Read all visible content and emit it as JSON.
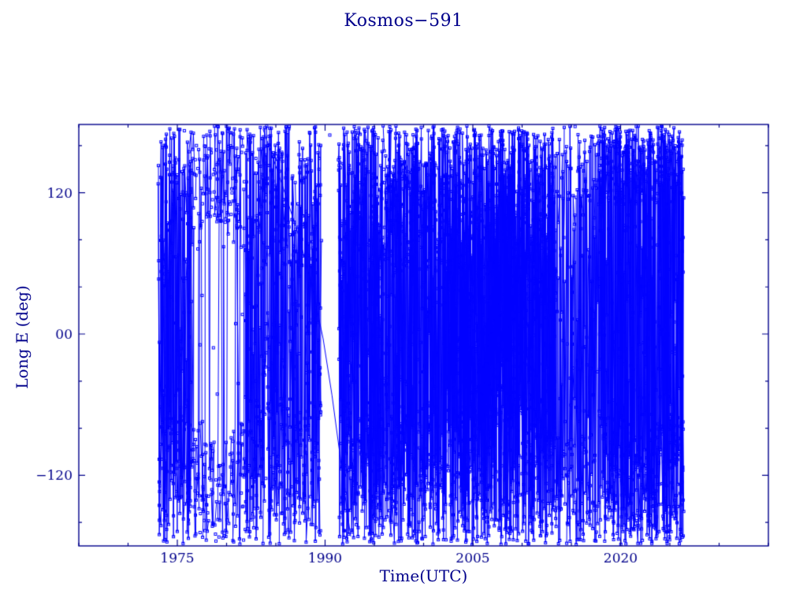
{
  "chart_data": {
    "type": "scatter",
    "title": "Kosmos−591",
    "xlabel": "Time(UTC)",
    "ylabel": "Long E (deg)",
    "xlim": [
      1965,
      2035
    ],
    "ylim": [
      -180,
      178
    ],
    "xticks": [
      1975,
      1990,
      2005,
      2020
    ],
    "xminor_step": 5,
    "yticks": [
      -120,
      0,
      120
    ],
    "ytick_labels": [
      "−120",
      "00",
      "120"
    ],
    "yminor_step": 40,
    "axis_color": "#00008b",
    "data_color": "#0000ff",
    "marker": "open-square",
    "marker_size": 3,
    "segments": [
      {
        "name": "early-dense",
        "from": 1973.1,
        "to": 1976.4,
        "dt": 0.07,
        "passes": 5,
        "crossP": 1,
        "bands": [
          {
            "lo": 60,
            "hi": 177,
            "p": 0.36
          },
          {
            "lo": -179,
            "hi": -60,
            "p": 0.36
          },
          {
            "lo": -58,
            "hi": 58,
            "p": 0.2
          }
        ]
      },
      {
        "name": "libration-lens-1",
        "from": 1976.4,
        "to": 1977.6,
        "dt": 0.07,
        "passes": 4,
        "crossP": 0.12,
        "bands": [
          {
            "lo": 72,
            "hi": 177,
            "p": 0.46
          },
          {
            "lo": -179,
            "hi": -72,
            "p": 0.46
          },
          {
            "lo": -68,
            "hi": 68,
            "p": 0.03
          }
        ]
      },
      {
        "name": "libration-lens-2",
        "from": 1977.6,
        "to": 1980.2,
        "dt": 0.07,
        "passes": 4,
        "crossP": 0.1,
        "bands": [
          {
            "lo": 92,
            "hi": 177,
            "p": 0.46
          },
          {
            "lo": -179,
            "hi": -88,
            "p": 0.46
          },
          {
            "lo": -80,
            "hi": 85,
            "p": 0.025
          }
        ]
      },
      {
        "name": "libration-lens-3",
        "from": 1980.2,
        "to": 1981.9,
        "dt": 0.07,
        "passes": 4,
        "crossP": 0.15,
        "bands": [
          {
            "lo": 72,
            "hi": 177,
            "p": 0.46
          },
          {
            "lo": -179,
            "hi": -72,
            "p": 0.46
          },
          {
            "lo": -65,
            "hi": 65,
            "p": 0.05
          }
        ]
      },
      {
        "name": "dense-80s",
        "from": 1981.9,
        "to": 1989.6,
        "dt": 0.065,
        "passes": 5,
        "crossP": 0.85,
        "bands": [
          {
            "lo": 55,
            "hi": 177,
            "p": 0.38
          },
          {
            "lo": -179,
            "hi": -55,
            "p": 0.38
          },
          {
            "lo": -55,
            "hi": 55,
            "p": 0.16
          }
        ]
      },
      {
        "name": "quiet-gap-1990",
        "from": 1989.7,
        "to": 1991.4,
        "dt": 0.25,
        "passes": 1,
        "crossP": 0,
        "bands": [
          {
            "lo": 105,
            "hi": 170,
            "p": 0.15
          },
          {
            "lo": -168,
            "hi": -125,
            "p": 0.12
          }
        ]
      },
      {
        "name": "dense-early-90s",
        "from": 1991.4,
        "to": 1995.6,
        "dt": 0.06,
        "passes": 6,
        "crossP": 1,
        "bands": [
          {
            "lo": 30,
            "hi": 177,
            "p": 0.42
          },
          {
            "lo": -179,
            "hi": -55,
            "p": 0.38
          },
          {
            "lo": -50,
            "hi": 28,
            "p": 0.14
          }
        ]
      },
      {
        "name": "dense-late-90s",
        "from": 1995.6,
        "to": 2002.6,
        "dt": 0.06,
        "passes": 6,
        "crossP": 0.9,
        "bands": [
          {
            "lo": 52,
            "hi": 177,
            "p": 0.46
          },
          {
            "lo": -179,
            "hi": -58,
            "p": 0.38
          },
          {
            "lo": -52,
            "hi": 50,
            "p": 0.1
          }
        ]
      },
      {
        "name": "very-dense-2000s",
        "from": 2002.6,
        "to": 2013.4,
        "dt": 0.055,
        "passes": 7,
        "crossP": 1,
        "bands": [
          {
            "lo": 40,
            "hi": 177,
            "p": 0.4
          },
          {
            "lo": -179,
            "hi": -40,
            "p": 0.36
          },
          {
            "lo": -38,
            "hi": 38,
            "p": 0.22
          }
        ]
      },
      {
        "name": "moderate-mid-2010s",
        "from": 2013.4,
        "to": 2017.9,
        "dt": 0.07,
        "passes": 4,
        "crossP": 0.9,
        "bands": [
          {
            "lo": 108,
            "hi": 177,
            "p": 0.28
          },
          {
            "lo": -179,
            "hi": -85,
            "p": 0.4
          },
          {
            "lo": -80,
            "hi": 104,
            "p": 0.26
          }
        ]
      },
      {
        "name": "dense-2020s",
        "from": 2017.9,
        "to": 2026.4,
        "dt": 0.06,
        "passes": 6,
        "crossP": 0.95,
        "bands": [
          {
            "lo": 110,
            "hi": 177,
            "p": 0.38
          },
          {
            "lo": -179,
            "hi": -68,
            "p": 0.4
          },
          {
            "lo": -62,
            "hi": 106,
            "p": 0.18
          }
        ]
      }
    ],
    "drift_lines": [
      {
        "name": "slow-drift-1990",
        "points": [
          [
            1983.7,
            174
          ],
          [
            1985.6,
            128
          ],
          [
            1987.3,
            84
          ],
          [
            1988.7,
            40
          ],
          [
            1989.8,
            -4
          ],
          [
            1990.7,
            -52
          ],
          [
            1991.5,
            -102
          ],
          [
            1992.2,
            -148
          ],
          [
            1992.6,
            -172
          ]
        ]
      }
    ]
  }
}
